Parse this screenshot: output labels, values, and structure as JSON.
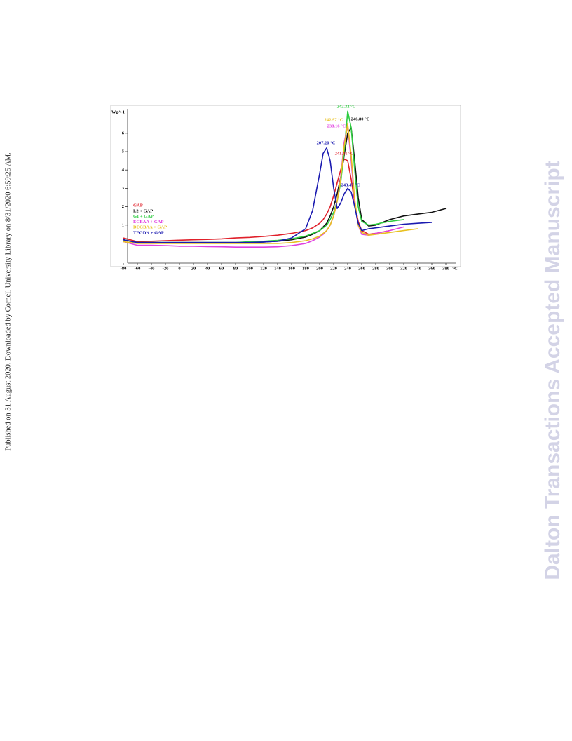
{
  "sidebar": "Published on 31 August 2020. Downloaded by Cornell University Library on 8/31/2020 6:59:25 AM.",
  "watermark": "Dalton Transactions Accepted Manuscript",
  "chart_data": {
    "type": "line",
    "y_label": "Wg^-1",
    "x_label": "°C",
    "x": [
      -80,
      -60,
      -40,
      -20,
      0,
      20,
      40,
      60,
      80,
      100,
      120,
      140,
      160,
      180,
      190,
      200,
      205,
      210,
      215,
      220,
      225,
      230,
      235,
      240,
      245,
      250,
      255,
      260,
      270,
      280,
      300,
      320,
      340,
      360,
      380
    ],
    "series": [
      {
        "name": "GAP",
        "color": "#e0202a",
        "values": [
          0.3,
          0.1,
          0.12,
          0.15,
          0.18,
          0.2,
          0.22,
          0.25,
          0.3,
          0.33,
          0.38,
          0.45,
          0.55,
          0.7,
          0.85,
          1.1,
          1.3,
          1.6,
          2.0,
          2.6,
          3.3,
          4.0,
          4.6,
          4.5,
          3.5,
          2.2,
          1.2,
          0.7,
          0.5,
          0.55,
          0.7,
          null,
          null,
          null,
          null
        ]
      },
      {
        "name": "L2 + GAP",
        "color": "#111111",
        "values": [
          0.2,
          0.05,
          0.05,
          0.05,
          0.05,
          0.05,
          0.05,
          0.05,
          0.05,
          0.05,
          0.08,
          0.12,
          0.2,
          0.35,
          0.5,
          0.7,
          0.9,
          1.1,
          1.5,
          2.0,
          2.7,
          3.6,
          4.8,
          6.0,
          6.3,
          4.5,
          2.5,
          1.3,
          0.95,
          1.0,
          1.3,
          1.5,
          1.6,
          1.7,
          1.9
        ]
      },
      {
        "name": "G1 + GAP",
        "color": "#2ecc40",
        "values": [
          0.2,
          0.05,
          0.05,
          0.05,
          0.05,
          0.05,
          0.05,
          0.05,
          0.05,
          0.1,
          0.12,
          0.17,
          0.25,
          0.4,
          0.55,
          0.7,
          0.85,
          1.0,
          1.3,
          1.7,
          2.3,
          3.3,
          5.0,
          7.2,
          6.3,
          4.0,
          2.0,
          1.2,
          1.0,
          1.05,
          1.2,
          1.3,
          null,
          null,
          null
        ]
      },
      {
        "name": "EGBAA + GAP",
        "color": "#e040e0",
        "values": [
          0.1,
          -0.1,
          -0.1,
          -0.12,
          -0.15,
          -0.15,
          -0.17,
          -0.18,
          -0.2,
          -0.2,
          -0.2,
          -0.18,
          -0.12,
          0.0,
          0.15,
          0.35,
          0.5,
          0.7,
          1.0,
          1.5,
          2.3,
          3.6,
          5.5,
          6.4,
          4.5,
          2.2,
          1.0,
          0.5,
          0.45,
          0.55,
          0.7,
          0.9,
          null,
          null,
          null
        ]
      },
      {
        "name": "DEGBAA + GAP",
        "color": "#e8c020",
        "values": [
          0.1,
          0.0,
          0.0,
          0.0,
          0.0,
          0.0,
          0.0,
          0.0,
          0.0,
          0.0,
          0.0,
          0.0,
          0.05,
          0.15,
          0.25,
          0.4,
          0.55,
          0.7,
          1.0,
          1.5,
          2.3,
          3.5,
          5.3,
          6.5,
          4.8,
          2.4,
          1.0,
          0.6,
          0.45,
          0.5,
          0.6,
          0.7,
          0.8,
          null,
          null
        ]
      },
      {
        "name": "TEGDN + GAP",
        "color": "#1a1ab0",
        "values": [
          0.2,
          0.05,
          0.05,
          0.05,
          0.05,
          0.05,
          0.05,
          0.05,
          0.05,
          0.05,
          0.08,
          0.12,
          0.3,
          0.8,
          1.8,
          3.8,
          4.9,
          5.2,
          4.5,
          3.0,
          1.9,
          2.2,
          2.7,
          3.0,
          2.8,
          2.0,
          1.1,
          0.7,
          0.8,
          0.85,
          0.95,
          1.05,
          1.1,
          1.15,
          null
        ]
      }
    ],
    "annotations": [
      {
        "text": "242.32 °C",
        "color": "#2ecc40"
      },
      {
        "text": "242.97 °C",
        "color": "#e8c020"
      },
      {
        "text": "238.16 °C",
        "color": "#e040e0"
      },
      {
        "text": "246.80 °C",
        "color": "#111111"
      },
      {
        "text": "207.20 °C",
        "color": "#1a1ab0"
      },
      {
        "text": "241.41 °C",
        "color": "#e0202a"
      },
      {
        "text": "243.47 °C",
        "color": "#1a1ab0"
      }
    ],
    "xlim": [
      -86,
      394
    ],
    "ylim": [
      -1.07,
      7.33
    ],
    "xticks": [
      -80,
      -60,
      -40,
      -20,
      0,
      20,
      40,
      60,
      80,
      100,
      120,
      140,
      160,
      180,
      200,
      220,
      240,
      260,
      280,
      300,
      320,
      340,
      360,
      380
    ],
    "yticks": [
      1,
      2,
      3,
      4,
      5,
      6
    ],
    "legend": "left"
  }
}
